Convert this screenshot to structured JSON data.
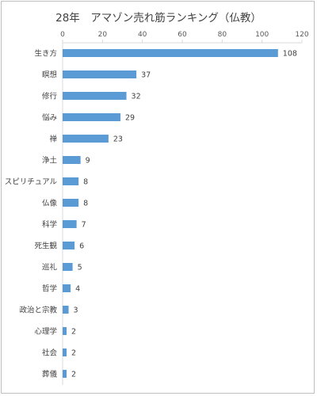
{
  "chart_data": {
    "type": "bar",
    "orientation": "horizontal",
    "title": "28年　アマゾン売れ筋ランキング（仏教）",
    "categories": [
      "生き方",
      "瞑想",
      "修行",
      "悩み",
      "禅",
      "浄土",
      "スピリチュアル",
      "仏像",
      "科学",
      "死生観",
      "巡礼",
      "哲学",
      "政治と宗教",
      "心理学",
      "社会",
      "葬儀"
    ],
    "values": [
      108,
      37,
      32,
      29,
      23,
      9,
      8,
      8,
      7,
      6,
      5,
      4,
      3,
      2,
      2,
      2
    ],
    "xlim": [
      0,
      120
    ],
    "xticks": [
      0,
      20,
      40,
      60,
      80,
      100,
      120
    ],
    "xaxis_position": "top",
    "grid": false,
    "data_labels": true,
    "bar_color": "#5b9bd5"
  }
}
